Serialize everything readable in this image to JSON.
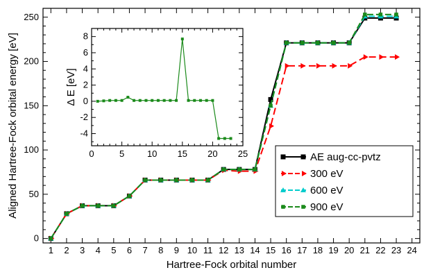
{
  "chart_data": [
    {
      "type": "line",
      "title": "",
      "xlabel": "Hartree-Fock orbital number",
      "ylabel": "Aligned Hartree-Fock orbital energy [eV]",
      "xlim": [
        0.5,
        24.5
      ],
      "ylim": [
        -5,
        260
      ],
      "xticks": [
        1,
        2,
        3,
        4,
        5,
        6,
        7,
        8,
        9,
        10,
        11,
        12,
        13,
        14,
        15,
        16,
        17,
        18,
        19,
        20,
        21,
        22,
        23,
        24
      ],
      "yticks": [
        0,
        50,
        100,
        150,
        200,
        250
      ],
      "grid": false,
      "legend_position": "bottom-right",
      "series": [
        {
          "name": "AE aug-cc-pvtz",
          "color": "#000000",
          "style": "solid",
          "marker": "square",
          "x": [
            1,
            2,
            3,
            4,
            5,
            6,
            7,
            8,
            9,
            10,
            11,
            12,
            13,
            14,
            15,
            16,
            17,
            18,
            19,
            20,
            21,
            22,
            23
          ],
          "y": [
            0,
            28,
            37,
            37,
            37,
            48,
            66,
            66,
            66,
            66,
            66,
            78,
            78,
            78,
            157,
            221,
            221,
            221,
            221,
            221,
            249,
            249,
            249
          ]
        },
        {
          "name": "300 eV",
          "color": "#ff0000",
          "style": "dashed",
          "marker": "arrow",
          "x": [
            1,
            2,
            3,
            4,
            5,
            6,
            7,
            8,
            9,
            10,
            11,
            12,
            13,
            14,
            15,
            16,
            17,
            18,
            19,
            20,
            21,
            22,
            23
          ],
          "y": [
            0,
            28,
            37,
            37,
            37,
            48,
            66,
            66,
            66,
            66,
            66,
            77,
            76,
            76,
            127,
            195,
            195,
            195,
            195,
            195,
            205,
            205,
            205
          ]
        },
        {
          "name": "600 eV",
          "color": "#00cccc",
          "style": "dashed",
          "marker": "triangle",
          "x": [
            1,
            2,
            3,
            4,
            5,
            6,
            7,
            8,
            9,
            10,
            11,
            12,
            13,
            14,
            15,
            16,
            17,
            18,
            19,
            20,
            21,
            22,
            23
          ],
          "y": [
            0,
            28,
            37,
            37,
            37,
            48,
            66,
            66,
            66,
            66,
            66,
            78,
            78,
            78,
            150,
            221,
            221,
            221,
            221,
            221,
            251,
            251,
            251
          ]
        },
        {
          "name": "900 eV",
          "color": "#1a8a1a",
          "style": "dashed",
          "marker": "square",
          "x": [
            1,
            2,
            3,
            4,
            5,
            6,
            7,
            8,
            9,
            10,
            11,
            12,
            13,
            14,
            15,
            16,
            17,
            18,
            19,
            20,
            21,
            22,
            23
          ],
          "y": [
            0,
            28,
            37,
            37,
            37,
            48,
            66,
            66,
            66,
            66,
            66,
            78,
            78,
            78,
            150,
            221,
            221,
            221,
            221,
            221,
            253,
            253,
            253
          ]
        }
      ]
    },
    {
      "type": "line",
      "title": "",
      "xlabel": "",
      "ylabel": "Δ E [eV]",
      "xlim": [
        0,
        25
      ],
      "ylim": [
        -5.5,
        9
      ],
      "xticks": [
        0,
        5,
        10,
        15,
        20,
        25
      ],
      "yticks": [
        -4,
        -2,
        0,
        2,
        4,
        6,
        8
      ],
      "grid": false,
      "series": [
        {
          "name": "",
          "color": "#1a8a1a",
          "style": "solid",
          "marker": "square",
          "x": [
            1,
            2,
            3,
            4,
            5,
            6,
            7,
            8,
            9,
            10,
            11,
            12,
            13,
            14,
            15,
            16,
            17,
            18,
            19,
            20,
            21,
            22,
            23
          ],
          "y": [
            0,
            0.05,
            0.1,
            0.1,
            0.1,
            0.5,
            0.1,
            0.1,
            0.1,
            0.1,
            0.1,
            0.1,
            0.1,
            0.1,
            7.7,
            0.1,
            0.1,
            0.1,
            0.1,
            0.1,
            -4.6,
            -4.6,
            -4.6
          ]
        }
      ]
    }
  ]
}
